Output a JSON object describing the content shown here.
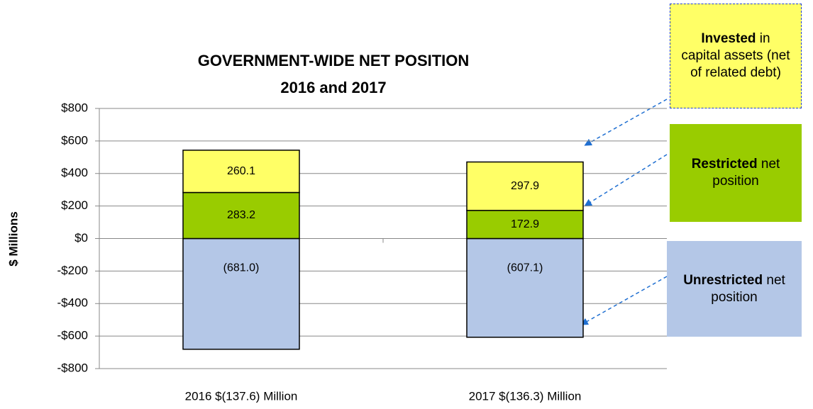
{
  "chart_data": {
    "type": "stacked_bar",
    "title": "GOVERNMENT-WIDE NET POSITION",
    "subtitle": "2016 and 2017",
    "y_label": "$ Millions",
    "categories": [
      "2016   $(137.6) Million",
      "2017   $(136.3) Million"
    ],
    "series": [
      {
        "name": "Unrestricted",
        "label": "net position",
        "color": "#b4c7e7",
        "values": [
          -681.0,
          -607.1
        ],
        "value_labels": [
          "(681.0)",
          "(607.1)"
        ]
      },
      {
        "name": "Restricted",
        "label": "net position",
        "color": "#99cc00",
        "values": [
          283.2,
          172.9
        ]
      },
      {
        "name": "Invested",
        "label": "in capital assets (net of related debt)",
        "color": "#ffff66",
        "values": [
          260.1,
          297.9
        ]
      }
    ],
    "ylim": [
      -800,
      800
    ],
    "yticks": [
      {
        "value": -800,
        "label": "-$800"
      },
      {
        "value": -600,
        "label": "-$600"
      },
      {
        "value": -400,
        "label": "-$400"
      },
      {
        "value": -200,
        "label": "-$200"
      },
      {
        "value": 0,
        "label": "$0"
      },
      {
        "value": 200,
        "label": "$200"
      },
      {
        "value": 400,
        "label": "$400"
      },
      {
        "value": 600,
        "label": "$600"
      },
      {
        "value": 800,
        "label": "$800"
      }
    ],
    "grid": true
  }
}
